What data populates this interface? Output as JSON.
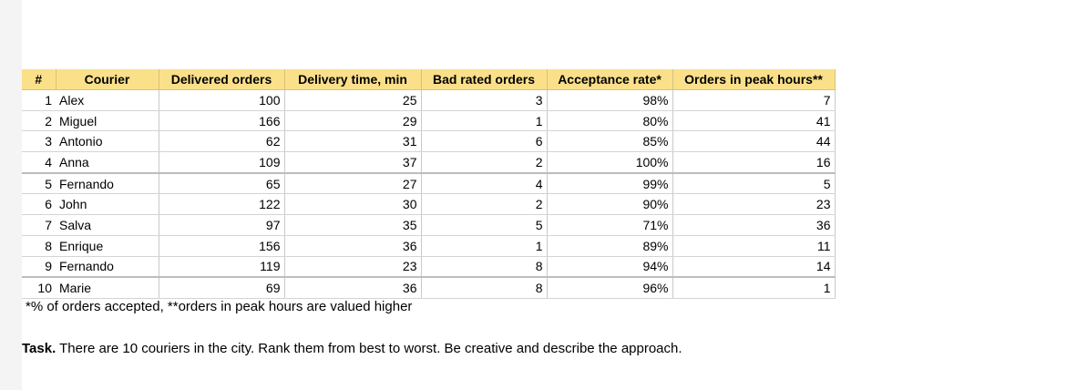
{
  "table": {
    "headers": [
      "#",
      "Courier",
      "Delivered orders",
      "Delivery time, min",
      "Bad rated orders",
      "Acceptance rate*",
      "Orders in peak hours**"
    ],
    "rows": [
      [
        "1",
        "Alex",
        "100",
        "25",
        "3",
        "98%",
        "7"
      ],
      [
        "2",
        "Miguel",
        "166",
        "29",
        "1",
        "80%",
        "41"
      ],
      [
        "3",
        "Antonio",
        "62",
        "31",
        "6",
        "85%",
        "44"
      ],
      [
        "4",
        "Anna",
        "109",
        "37",
        "2",
        "100%",
        "16"
      ],
      [
        "5",
        "Fernando",
        "65",
        "27",
        "4",
        "99%",
        "5"
      ],
      [
        "6",
        "John",
        "122",
        "30",
        "2",
        "90%",
        "23"
      ],
      [
        "7",
        "Salva",
        "97",
        "35",
        "5",
        "71%",
        "36"
      ],
      [
        "8",
        "Enrique",
        "156",
        "36",
        "1",
        "89%",
        "11"
      ],
      [
        "9",
        "Fernando",
        "119",
        "23",
        "8",
        "94%",
        "14"
      ],
      [
        "10",
        "Marie",
        "69",
        "36",
        "8",
        "96%",
        "1"
      ]
    ]
  },
  "footnote": "*% of orders accepted, **orders in peak hours are valued higher",
  "task": {
    "label": "Task.",
    "text": " There are 10 couriers in the city. Rank them from best to worst. Be creative and describe the approach."
  }
}
